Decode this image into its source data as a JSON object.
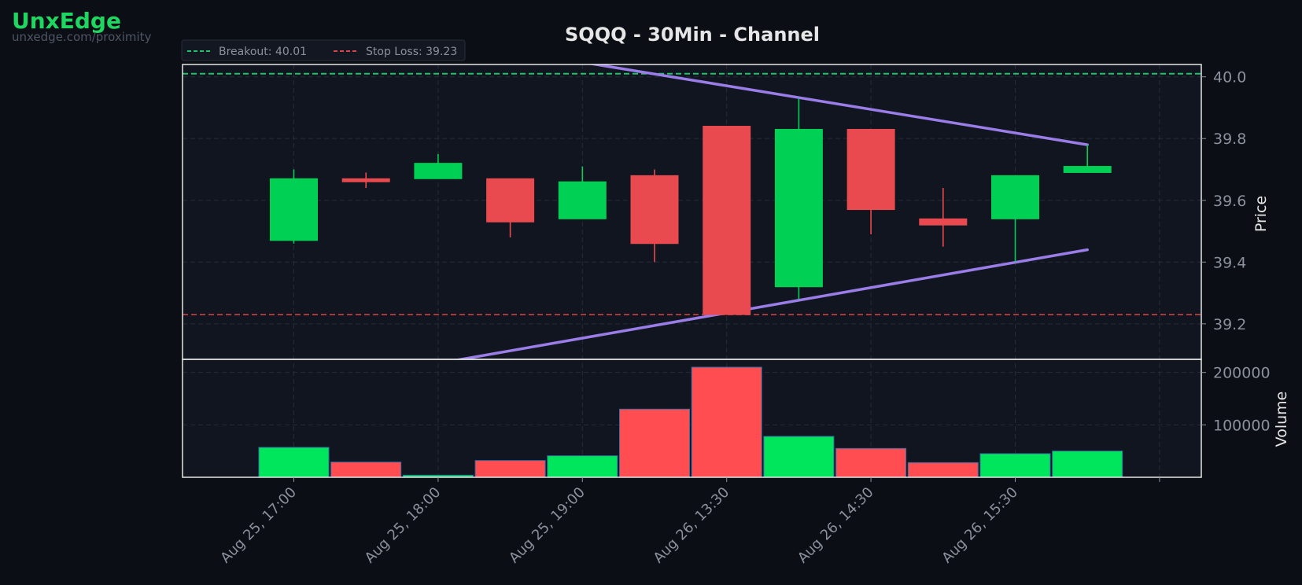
{
  "brand": {
    "name": "UnxEdge",
    "url": "unxedge.com/proximity"
  },
  "colors": {
    "background": "#0b0e15",
    "panel": "#111520",
    "up": "#00d054",
    "down": "#e84a4f",
    "vol_up": "#00e65c",
    "vol_down": "#ff4d52",
    "channel": "#9b7de8",
    "breakout": "#1ec36b",
    "stop": "#d9454a",
    "grid": "#262b38",
    "axis_text": "#8b919c",
    "title": "#e6e6e6"
  },
  "chart_data": {
    "type": "candlestick",
    "title": "SQQQ - 30Min - Channel",
    "ylabel": "Price",
    "volume_label": "Volume",
    "ylim": [
      39.085,
      40.04
    ],
    "volume_ylim": [
      0,
      225000
    ],
    "yticks": [
      39.2,
      39.4,
      39.6,
      39.8,
      40.0
    ],
    "ytick_labels": [
      "39.2",
      "39.4",
      "39.6",
      "39.8",
      "40.0"
    ],
    "volume_ticks": [
      100000,
      200000
    ],
    "volume_tick_labels": [
      "100000",
      "200000"
    ],
    "xtick_labels": [
      "Aug 25, 17:00",
      "Aug 25, 18:00",
      "Aug 25, 19:00",
      "Aug 26, 13:30",
      "Aug 26, 14:30",
      "Aug 26, 15:30"
    ],
    "xtick_index": [
      0,
      2,
      4,
      6,
      8,
      10
    ],
    "grid": true,
    "legend_position": "top-left",
    "legend": [
      {
        "label": "Breakout: 40.01",
        "style": "dashed",
        "color": "#1ec36b"
      },
      {
        "label": "Stop Loss: 39.23",
        "style": "dashed",
        "color": "#d9454a"
      }
    ],
    "breakout": 40.01,
    "stop_loss": 39.23,
    "candles": [
      {
        "open": 39.47,
        "high": 39.7,
        "low": 39.46,
        "close": 39.67,
        "volume": 57000
      },
      {
        "open": 39.67,
        "high": 39.69,
        "low": 39.64,
        "close": 39.66,
        "volume": 29000
      },
      {
        "open": 39.67,
        "high": 39.75,
        "low": 39.67,
        "close": 39.72,
        "volume": 4000
      },
      {
        "open": 39.67,
        "high": 39.67,
        "low": 39.48,
        "close": 39.53,
        "volume": 32000
      },
      {
        "open": 39.54,
        "high": 39.71,
        "low": 39.54,
        "close": 39.66,
        "volume": 41000
      },
      {
        "open": 39.68,
        "high": 39.7,
        "low": 39.4,
        "close": 39.46,
        "volume": 130000
      },
      {
        "open": 39.84,
        "high": 39.84,
        "low": 39.23,
        "close": 39.23,
        "volume": 210000
      },
      {
        "open": 39.32,
        "high": 39.93,
        "low": 39.28,
        "close": 39.83,
        "volume": 78000
      },
      {
        "open": 39.83,
        "high": 39.83,
        "low": 39.49,
        "close": 39.57,
        "volume": 55000
      },
      {
        "open": 39.54,
        "high": 39.64,
        "low": 39.45,
        "close": 39.52,
        "volume": 28000
      },
      {
        "open": 39.54,
        "high": 39.68,
        "low": 39.4,
        "close": 39.68,
        "volume": 45000
      },
      {
        "open": 39.69,
        "high": 39.78,
        "low": 39.69,
        "close": 39.71,
        "volume": 50000
      }
    ],
    "channel_upper": {
      "from": [
        0,
        40.2
      ],
      "to": [
        11,
        39.78
      ]
    },
    "channel_lower": {
      "from": [
        0,
        38.99
      ],
      "to": [
        11,
        39.44
      ]
    }
  }
}
